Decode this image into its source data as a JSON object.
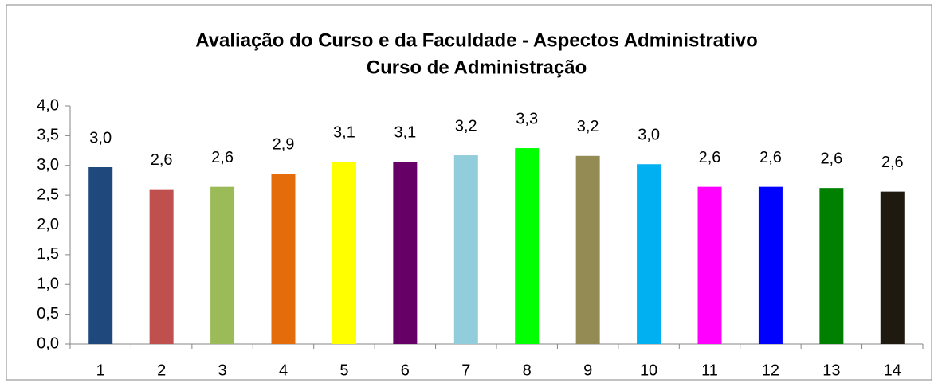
{
  "chart_data": {
    "type": "bar",
    "title": "Avaliação do Curso e da Faculdade - Aspectos Administrativo",
    "subtitle": "Curso  de Administração",
    "categories": [
      "1",
      "2",
      "3",
      "4",
      "5",
      "6",
      "7",
      "8",
      "9",
      "10",
      "11",
      "12",
      "13",
      "14"
    ],
    "values": [
      2.97,
      2.6,
      2.64,
      2.86,
      3.06,
      3.06,
      3.17,
      3.29,
      3.16,
      3.02,
      2.64,
      2.64,
      2.62,
      2.56
    ],
    "value_labels": [
      "3,0",
      "2,6",
      "2,6",
      "2,9",
      "3,1",
      "3,1",
      "3,2",
      "3,3",
      "3,2",
      "3,0",
      "2,6",
      "2,6",
      "2,6",
      "2,6"
    ],
    "colors": [
      "#1f497d",
      "#c0504d",
      "#9bbb59",
      "#e46c0a",
      "#ffff00",
      "#660066",
      "#92cddc",
      "#00ff00",
      "#948a54",
      "#00b0f0",
      "#ff00ff",
      "#0000ff",
      "#008000",
      "#1f1a0f"
    ],
    "ylim": [
      0,
      4
    ],
    "yticks": [
      {
        "value": 0,
        "label": "0,0"
      },
      {
        "value": 0.5,
        "label": "0,5"
      },
      {
        "value": 1,
        "label": "1,0"
      },
      {
        "value": 1.5,
        "label": "1,5"
      },
      {
        "value": 2,
        "label": "2,0"
      },
      {
        "value": 2.5,
        "label": "2,5"
      },
      {
        "value": 3,
        "label": "3,0"
      },
      {
        "value": 3.5,
        "label": "3,5"
      },
      {
        "value": 4,
        "label": "4,0"
      }
    ],
    "grid": false
  }
}
